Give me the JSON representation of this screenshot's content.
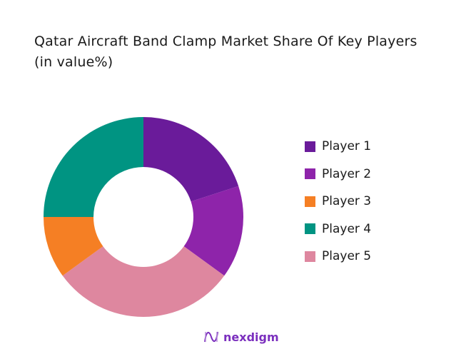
{
  "chart_data": {
    "type": "pie",
    "donut": true,
    "title": "Qatar Aircraft Band Clamp Market Share Of Key Players (in value%)",
    "slices": [
      {
        "name": "Player 1",
        "value": 20,
        "color": "#6a1b9a"
      },
      {
        "name": "Player 2",
        "value": 15,
        "color": "#8e24aa"
      },
      {
        "name": "Player 3",
        "value": 10,
        "color": "#f57f24"
      },
      {
        "name": "Player 4",
        "value": 25,
        "color": "#009482"
      },
      {
        "name": "Player 5",
        "value": 30,
        "color": "#de879f"
      }
    ],
    "draw_order_clockwise_from_top": [
      "Player 1",
      "Player 2",
      "Player 5",
      "Player 3",
      "Player 4"
    ],
    "legend_position": "right"
  },
  "logo": {
    "text": "nexdigm"
  }
}
